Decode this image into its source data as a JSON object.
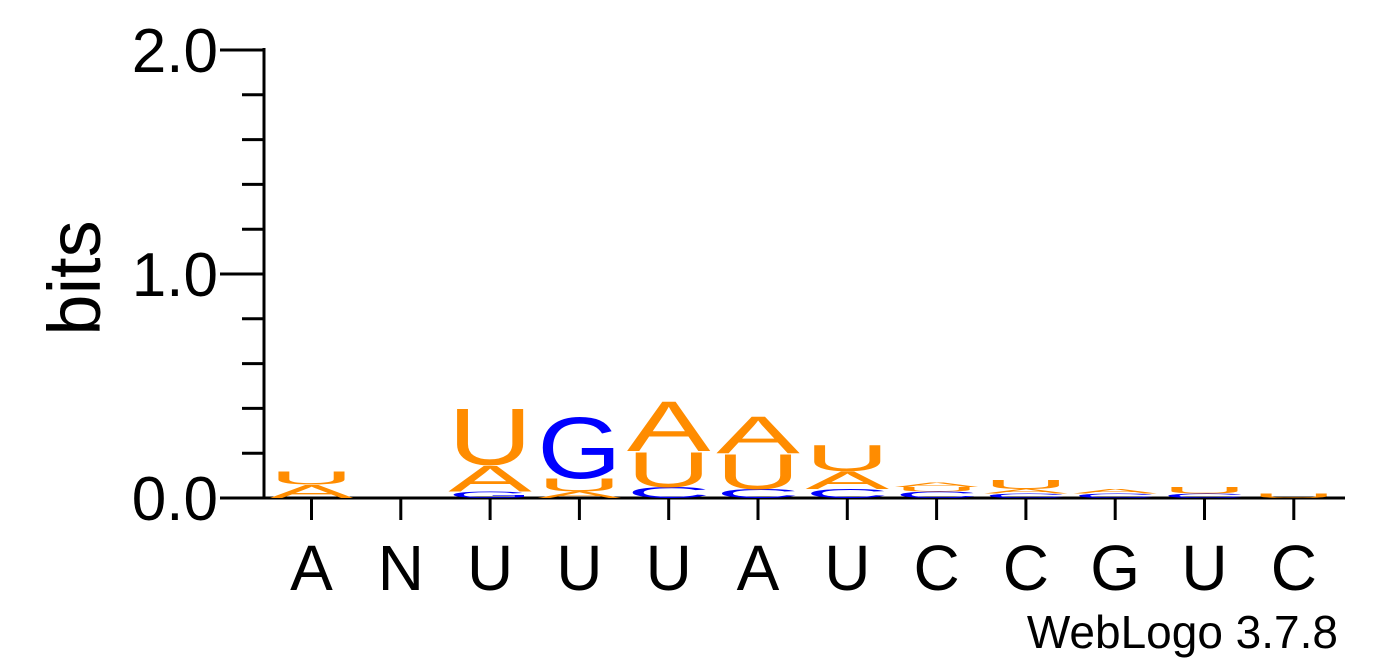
{
  "chart_data": {
    "type": "sequence-logo",
    "ylabel": "bits",
    "ylim": [
      0,
      2.0
    ],
    "y_ticks": [
      {
        "value": 0.0,
        "label": "0.0"
      },
      {
        "value": 1.0,
        "label": "1.0"
      },
      {
        "value": 2.0,
        "label": "2.0"
      }
    ],
    "x_tick_labels": [
      "A",
      "N",
      "U",
      "U",
      "U",
      "A",
      "U",
      "C",
      "C",
      "G",
      "U",
      "C"
    ],
    "colors": {
      "A": "#ff8c00",
      "U": "#ff8c00",
      "G": "#0000ff",
      "C": "#0000ff"
    },
    "positions": [
      {
        "stack": [
          {
            "base": "A",
            "bits": 0.06
          },
          {
            "base": "U",
            "bits": 0.06
          }
        ]
      },
      {
        "stack": []
      },
      {
        "stack": [
          {
            "base": "G",
            "bits": 0.03
          },
          {
            "base": "A",
            "bits": 0.12
          },
          {
            "base": "U",
            "bits": 0.26
          }
        ]
      },
      {
        "stack": [
          {
            "base": "A",
            "bits": 0.03
          },
          {
            "base": "U",
            "bits": 0.06
          },
          {
            "base": "G",
            "bits": 0.28
          }
        ]
      },
      {
        "stack": [
          {
            "base": "C",
            "bits": 0.05
          },
          {
            "base": "U",
            "bits": 0.16
          },
          {
            "base": "A",
            "bits": 0.23
          }
        ]
      },
      {
        "stack": [
          {
            "base": "C",
            "bits": 0.04
          },
          {
            "base": "U",
            "bits": 0.16
          },
          {
            "base": "A",
            "bits": 0.17
          }
        ]
      },
      {
        "stack": [
          {
            "base": "C",
            "bits": 0.04
          },
          {
            "base": "A",
            "bits": 0.08
          },
          {
            "base": "U",
            "bits": 0.12
          }
        ]
      },
      {
        "stack": [
          {
            "base": "C",
            "bits": 0.03
          },
          {
            "base": "U",
            "bits": 0.02
          },
          {
            "base": "A",
            "bits": 0.02
          }
        ]
      },
      {
        "stack": [
          {
            "base": "C",
            "bits": 0.02
          },
          {
            "base": "A",
            "bits": 0.02
          },
          {
            "base": "U",
            "bits": 0.04
          }
        ]
      },
      {
        "stack": [
          {
            "base": "C",
            "bits": 0.02
          },
          {
            "base": "A",
            "bits": 0.02
          }
        ]
      },
      {
        "stack": [
          {
            "base": "C",
            "bits": 0.02
          },
          {
            "base": "U",
            "bits": 0.03
          }
        ]
      },
      {
        "stack": [
          {
            "base": "U",
            "bits": 0.02
          }
        ]
      }
    ]
  },
  "footer": {
    "label": "WebLogo 3.7.8"
  }
}
